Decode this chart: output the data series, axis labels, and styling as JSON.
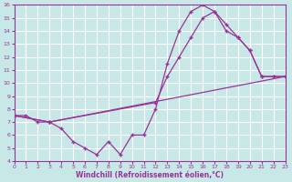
{
  "xlabel": "Windchill (Refroidissement éolien,°C)",
  "xlim": [
    0,
    23
  ],
  "ylim": [
    4,
    16
  ],
  "xticks": [
    0,
    1,
    2,
    3,
    4,
    5,
    6,
    7,
    8,
    9,
    10,
    11,
    12,
    13,
    14,
    15,
    16,
    17,
    18,
    19,
    20,
    21,
    22,
    23
  ],
  "yticks": [
    4,
    5,
    6,
    7,
    8,
    9,
    10,
    11,
    12,
    13,
    14,
    15,
    16
  ],
  "bg_color": "#c8e8e8",
  "line_color": "#993399",
  "grid_color": "#ffffff",
  "line1_x": [
    0,
    1,
    2,
    3,
    4,
    5,
    6,
    7,
    8,
    9,
    10,
    11,
    12,
    13,
    14,
    15,
    16,
    17,
    18,
    19,
    20,
    21,
    22,
    23
  ],
  "line1_y": [
    7.5,
    7.5,
    7.0,
    7.0,
    6.5,
    5.5,
    5.0,
    4.5,
    5.5,
    4.5,
    6.0,
    6.0,
    8.0,
    11.5,
    14.0,
    15.5,
    16.0,
    15.5,
    14.5,
    13.5,
    12.5,
    10.5,
    10.5,
    10.5
  ],
  "line2_x": [
    0,
    3,
    23
  ],
  "line2_y": [
    7.5,
    7.0,
    10.5
  ],
  "line3_x": [
    0,
    3,
    12,
    13,
    14,
    15,
    16,
    17,
    18,
    19,
    20,
    21,
    22,
    23
  ],
  "line3_y": [
    7.5,
    7.0,
    8.5,
    10.5,
    12.0,
    13.5,
    15.0,
    15.5,
    14.0,
    13.5,
    12.5,
    10.5,
    10.5,
    10.5
  ]
}
